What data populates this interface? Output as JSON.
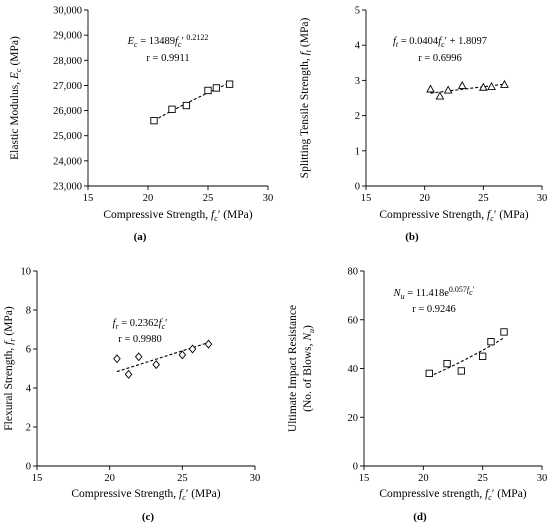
{
  "chart_data": [
    {
      "type": "scatter",
      "panel_label": "(a)",
      "xlabel": "Compressive Strength, f′c (MPa)",
      "xlabel_parts": [
        {
          "t": "Compressive Strength, "
        },
        {
          "t": "f",
          "i": true
        },
        {
          "t": "c",
          "i": true,
          "sub": true
        },
        {
          "t": "′ (MPa)"
        }
      ],
      "ylabel": "Elastic Modulus, Ec (MPa)",
      "ylabel_parts": [
        {
          "t": "Elastic Modulus, "
        },
        {
          "t": "E",
          "i": true
        },
        {
          "t": "c",
          "i": true,
          "sub": true
        },
        {
          "t": " (MPa)"
        }
      ],
      "xlim": [
        15,
        30
      ],
      "ylim": [
        23000,
        30000
      ],
      "xticks": [
        15,
        20,
        25,
        30
      ],
      "yticks": [
        23000,
        24000,
        25000,
        26000,
        27000,
        28000,
        29000,
        30000
      ],
      "ytick_labels": [
        "23,000",
        "24,000",
        "25,000",
        "26,000",
        "27,000",
        "28,000",
        "29,000",
        "30,000"
      ],
      "marker": "square",
      "fit": "power",
      "fit_params": {
        "a": 13489,
        "b": 0.2122
      },
      "series": [
        {
          "x": [
            20.5,
            22.0,
            23.2,
            25.0,
            25.7,
            26.8
          ],
          "y": [
            25600,
            26050,
            26200,
            26800,
            26900,
            27050
          ]
        }
      ],
      "equation": "Ec = 13489fc′ 0.2122",
      "equation_parts": [
        {
          "t": "E",
          "i": true
        },
        {
          "t": "c",
          "i": true,
          "sub": true
        },
        {
          "t": " = 13489"
        },
        {
          "t": "f",
          "i": true
        },
        {
          "t": "c",
          "i": true,
          "sub": true
        },
        {
          "t": "′ "
        },
        {
          "t": "0.2122",
          "sup": true
        }
      ],
      "r": "r = 0.9911",
      "grid": false
    },
    {
      "type": "scatter",
      "panel_label": "(b)",
      "xlabel": "Compressive Strength, f′c (MPa)",
      "xlabel_parts": [
        {
          "t": "Compressive Strength, "
        },
        {
          "t": "f",
          "i": true
        },
        {
          "t": "c",
          "i": true,
          "sub": true
        },
        {
          "t": "′ (MPa)"
        }
      ],
      "ylabel": "Splitting Tensile Strength, ft (MPa)",
      "ylabel_parts": [
        {
          "t": "Splitting Tensile Strength, "
        },
        {
          "t": "f",
          "i": true
        },
        {
          "t": "t",
          "i": true,
          "sub": true
        },
        {
          "t": " (MPa)"
        }
      ],
      "xlim": [
        15,
        30
      ],
      "ylim": [
        0,
        5
      ],
      "xticks": [
        15,
        20,
        25,
        30
      ],
      "yticks": [
        0,
        1,
        2,
        3,
        4,
        5
      ],
      "ytick_labels": [
        "0",
        "1",
        "2",
        "3",
        "4",
        "5"
      ],
      "marker": "triangle",
      "fit": "linear",
      "fit_params": {
        "m": 0.0404,
        "c": 1.8097
      },
      "series": [
        {
          "x": [
            20.5,
            21.3,
            22.0,
            23.2,
            25.0,
            25.7,
            26.8
          ],
          "y": [
            2.75,
            2.55,
            2.72,
            2.85,
            2.8,
            2.82,
            2.88
          ]
        }
      ],
      "equation": "ft = 0.0404fc′ + 1.8097",
      "equation_parts": [
        {
          "t": "f",
          "i": true
        },
        {
          "t": "t",
          "i": true,
          "sub": true
        },
        {
          "t": " = 0.0404"
        },
        {
          "t": "f",
          "i": true
        },
        {
          "t": "c",
          "i": true,
          "sub": true
        },
        {
          "t": "′ + 1.8097"
        }
      ],
      "r": "r = 0.6996",
      "grid": false
    },
    {
      "type": "scatter",
      "panel_label": "(c)",
      "xlabel": "Compressive Strength, fc′ (MPa)",
      "xlabel_parts": [
        {
          "t": "Compressive Strength, "
        },
        {
          "t": "f",
          "i": true
        },
        {
          "t": "c",
          "i": true,
          "sub": true
        },
        {
          "t": "′ (MPa)"
        }
      ],
      "ylabel": "Flexural Strength, fr (MPa)",
      "ylabel_parts": [
        {
          "t": "Flexural Strength, "
        },
        {
          "t": "f",
          "i": true
        },
        {
          "t": "r",
          "i": true,
          "sub": true
        },
        {
          "t": " (MPa)"
        }
      ],
      "xlim": [
        15,
        30
      ],
      "ylim": [
        0,
        10
      ],
      "xticks": [
        15,
        20,
        25,
        30
      ],
      "yticks": [
        0,
        2,
        4,
        6,
        8,
        10
      ],
      "ytick_labels": [
        "0",
        "2",
        "4",
        "6",
        "8",
        "10"
      ],
      "marker": "diamond",
      "fit": "linear",
      "fit_params": {
        "m": 0.2362,
        "c": 0
      },
      "series": [
        {
          "x": [
            20.5,
            21.3,
            22.0,
            23.2,
            25.0,
            25.7,
            26.8
          ],
          "y": [
            5.5,
            4.7,
            5.6,
            5.2,
            5.7,
            6.0,
            6.25
          ]
        }
      ],
      "equation": "fr = 0.2362fc′",
      "equation_parts": [
        {
          "t": "f",
          "i": true
        },
        {
          "t": "r",
          "i": true,
          "sub": true
        },
        {
          "t": " = 0.2362"
        },
        {
          "t": "f",
          "i": true
        },
        {
          "t": "c",
          "i": true,
          "sub": true
        },
        {
          "t": "′"
        }
      ],
      "r": "r = 0.9980",
      "grid": false
    },
    {
      "type": "scatter",
      "panel_label": "(d)",
      "xlabel": "Compressive strength, fc′ (MPa)",
      "xlabel_parts": [
        {
          "t": "Compressive strength, "
        },
        {
          "t": "f",
          "i": true
        },
        {
          "t": "c",
          "i": true,
          "sub": true
        },
        {
          "t": "′ (MPa)"
        }
      ],
      "ylabel": "Ultimate Impact Resistance (No. of Blows, Nu)",
      "ylabel_parts": [
        {
          "t": "Ultimate Impact Resistance"
        }
      ],
      "ylabel_parts2": [
        {
          "t": "(No. of Blows, "
        },
        {
          "t": "N",
          "i": true
        },
        {
          "t": "u",
          "i": true,
          "sub": true
        },
        {
          "t": ")"
        }
      ],
      "xlim": [
        15,
        30
      ],
      "ylim": [
        0,
        80
      ],
      "xticks": [
        15,
        20,
        25,
        30
      ],
      "yticks": [
        0,
        20,
        40,
        60,
        80
      ],
      "ytick_labels": [
        "0",
        "20",
        "40",
        "60",
        "80"
      ],
      "marker": "square",
      "fit": "exp",
      "fit_params": {
        "a": 11.418,
        "b": 0.057
      },
      "series": [
        {
          "x": [
            20.5,
            22.0,
            23.2,
            25.0,
            25.7,
            26.8
          ],
          "y": [
            38,
            42,
            39,
            45,
            51,
            55
          ]
        }
      ],
      "equation": "Nu = 11.418e0.057fc′",
      "equation_parts": [
        {
          "t": "N",
          "i": true
        },
        {
          "t": "u",
          "i": true,
          "sub": true
        },
        {
          "t": " = 11.418e"
        },
        {
          "t": "0.057",
          "sup": true
        },
        {
          "t": "f",
          "i": true,
          "sup": true
        },
        {
          "t": "c",
          "i": true,
          "supsub": true
        },
        {
          "t": "′",
          "sup": true
        }
      ],
      "r": "r = 0.9246",
      "grid": false
    }
  ]
}
